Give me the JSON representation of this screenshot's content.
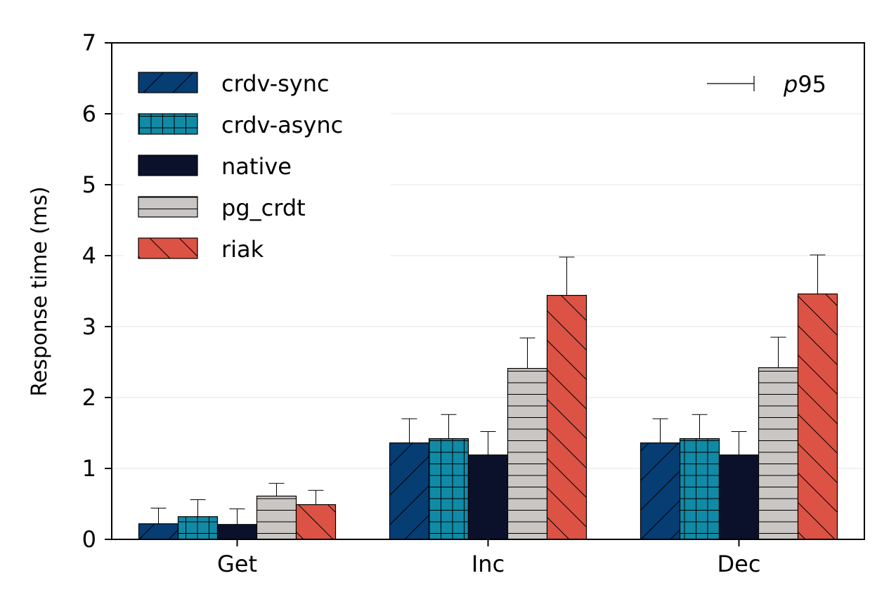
{
  "chart_data": {
    "type": "bar",
    "title": "",
    "xlabel": "",
    "ylabel": "Response time (ms)",
    "ylim": [
      0,
      7
    ],
    "yticks": [
      0,
      1,
      2,
      3,
      4,
      5,
      6,
      7
    ],
    "grid": "horizontal-light",
    "legend_position": "top-left",
    "categories": [
      "Get",
      "Inc",
      "Dec"
    ],
    "series": [
      {
        "name": "crdv-sync",
        "values": [
          0.22,
          1.36,
          1.36
        ],
        "p95": [
          0.44,
          1.7,
          1.7
        ],
        "color": "#063d73",
        "pattern": "diag-fwd"
      },
      {
        "name": "crdv-async",
        "values": [
          0.32,
          1.42,
          1.42
        ],
        "p95": [
          0.56,
          1.76,
          1.76
        ],
        "color": "#118aa6",
        "pattern": "grid"
      },
      {
        "name": "native",
        "values": [
          0.21,
          1.19,
          1.19
        ],
        "p95": [
          0.43,
          1.52,
          1.52
        ],
        "color": "#0b112a",
        "pattern": "none"
      },
      {
        "name": "pg_crdt",
        "values": [
          0.61,
          2.41,
          2.42
        ],
        "p95": [
          0.79,
          2.84,
          2.85
        ],
        "color": "#c9c6c4",
        "pattern": "horizontal"
      },
      {
        "name": "riak",
        "values": [
          0.49,
          3.44,
          3.46
        ],
        "p95": [
          0.69,
          3.98,
          4.01
        ],
        "color": "#dc5244",
        "pattern": "diag-back"
      }
    ],
    "errorbar_legend": {
      "prefix": "p",
      "suffix": "95"
    }
  }
}
